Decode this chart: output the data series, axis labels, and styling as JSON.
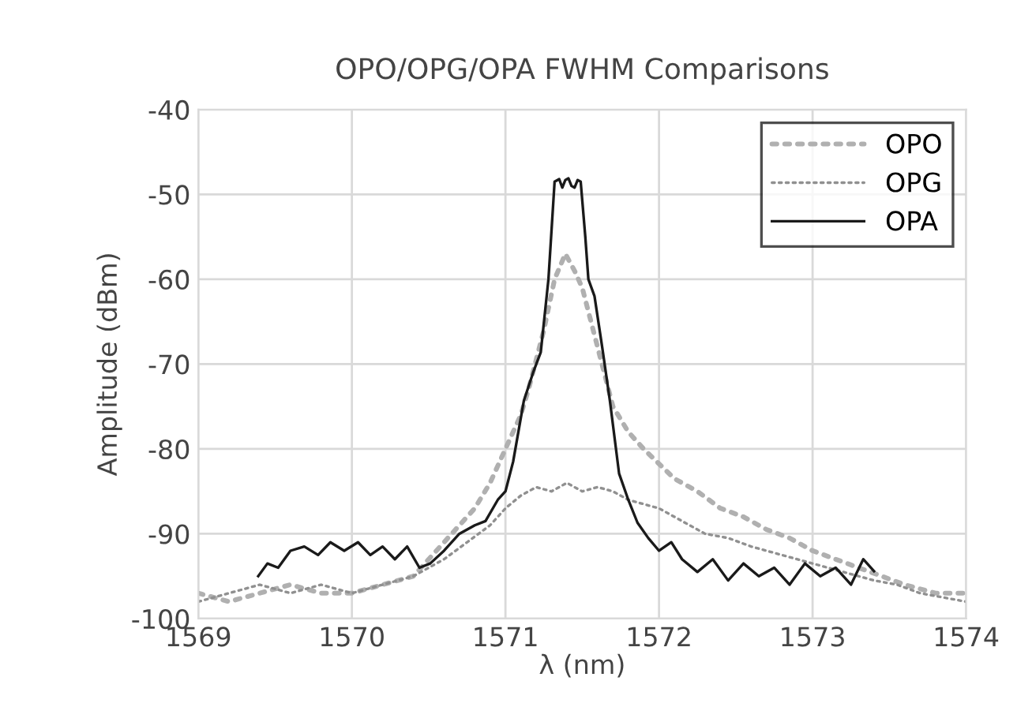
{
  "chart_data": {
    "type": "line",
    "title": "OPO/OPG/OPA FWHM Comparisons",
    "xlabel": "λ (nm)",
    "ylabel": "Amplitude (dBm)",
    "xlim": [
      1569,
      1574
    ],
    "xticks": [
      1569,
      1570,
      1571,
      1572,
      1573,
      1574
    ],
    "ylim": [
      -100,
      -40
    ],
    "yticks": [
      -100,
      -90,
      -80,
      -70,
      -60,
      -50,
      -40
    ],
    "grid": true,
    "legend": "top right",
    "series": [
      {
        "name": "OPO",
        "color": "#b0b0b0",
        "line_style": "dotted",
        "x": [
          1569.0,
          1569.2,
          1569.4,
          1569.6,
          1569.8,
          1570.0,
          1570.2,
          1570.4,
          1570.5,
          1570.65,
          1570.8,
          1570.9,
          1571.0,
          1571.1,
          1571.15,
          1571.25,
          1571.32,
          1571.39,
          1571.45,
          1571.5,
          1571.6,
          1571.7,
          1571.8,
          1571.9,
          1572.1,
          1572.25,
          1572.4,
          1572.55,
          1572.7,
          1572.85,
          1573.0,
          1573.15,
          1573.3,
          1573.45,
          1573.6,
          1573.8,
          1574.0
        ],
        "values": [
          -97,
          -98,
          -97,
          -96,
          -97,
          -97,
          -96,
          -95,
          -93,
          -90,
          -87,
          -84,
          -80,
          -76,
          -73,
          -66,
          -60,
          -57,
          -59,
          -61,
          -68,
          -75,
          -78,
          -80,
          -83.5,
          -85,
          -87,
          -88,
          -89.5,
          -90.5,
          -92,
          -93,
          -94,
          -95,
          -96,
          -97,
          -97
        ]
      },
      {
        "name": "OPG",
        "color": "#909090",
        "line_style": "dotted",
        "x": [
          1569.0,
          1569.2,
          1569.4,
          1569.6,
          1569.8,
          1570.0,
          1570.2,
          1570.4,
          1570.6,
          1570.75,
          1570.9,
          1571.0,
          1571.1,
          1571.2,
          1571.3,
          1571.4,
          1571.5,
          1571.6,
          1571.7,
          1571.8,
          1571.9,
          1572.0,
          1572.15,
          1572.3,
          1572.45,
          1572.6,
          1572.8,
          1573.0,
          1573.2,
          1573.4,
          1573.55,
          1573.7,
          1573.85,
          1574.0
        ],
        "values": [
          -98,
          -97,
          -96,
          -97,
          -96,
          -97,
          -96,
          -95,
          -93,
          -91,
          -89,
          -87,
          -85.5,
          -84.5,
          -85,
          -84,
          -85,
          -84.5,
          -85,
          -86,
          -86.5,
          -87,
          -88.5,
          -90,
          -90.5,
          -91.5,
          -92.5,
          -93.5,
          -94.5,
          -95.5,
          -96,
          -97,
          -97.5,
          -98
        ]
      },
      {
        "name": "OPA",
        "color": "#1a1a1a",
        "line_style": "solid",
        "x": [
          1569.39,
          1569.45,
          1569.52,
          1569.6,
          1569.69,
          1569.78,
          1569.86,
          1569.95,
          1570.04,
          1570.12,
          1570.2,
          1570.28,
          1570.36,
          1570.44,
          1570.51,
          1570.6,
          1570.7,
          1570.8,
          1570.87,
          1570.95,
          1571.0,
          1571.05,
          1571.12,
          1571.18,
          1571.23,
          1571.28,
          1571.32,
          1571.35,
          1571.37,
          1571.39,
          1571.41,
          1571.43,
          1571.45,
          1571.47,
          1571.49,
          1571.52,
          1571.54,
          1571.58,
          1571.63,
          1571.68,
          1571.74,
          1571.8,
          1571.86,
          1571.93,
          1572.0,
          1572.08,
          1572.15,
          1572.25,
          1572.35,
          1572.45,
          1572.55,
          1572.65,
          1572.75,
          1572.85,
          1572.95,
          1573.05,
          1573.15,
          1573.25,
          1573.33,
          1573.4
        ],
        "values": [
          -95,
          -93.5,
          -94,
          -92,
          -91.5,
          -92.5,
          -91,
          -92,
          -91,
          -92.5,
          -91.5,
          -93,
          -91.5,
          -94,
          -93.5,
          -92,
          -90,
          -89,
          -88.5,
          -86,
          -85,
          -81.5,
          -74.3,
          -71,
          -68.6,
          -60,
          -48.5,
          -48.2,
          -49.2,
          -48.3,
          -48.1,
          -49,
          -49.2,
          -48.3,
          -48.5,
          -55,
          -60,
          -62,
          -68,
          -74.3,
          -82.9,
          -86,
          -88.7,
          -90.5,
          -92,
          -91,
          -93,
          -94.5,
          -93,
          -95.5,
          -93.5,
          -95,
          -94,
          -96,
          -93.5,
          -95,
          -94,
          -96,
          -93,
          -94.4
        ]
      }
    ]
  }
}
